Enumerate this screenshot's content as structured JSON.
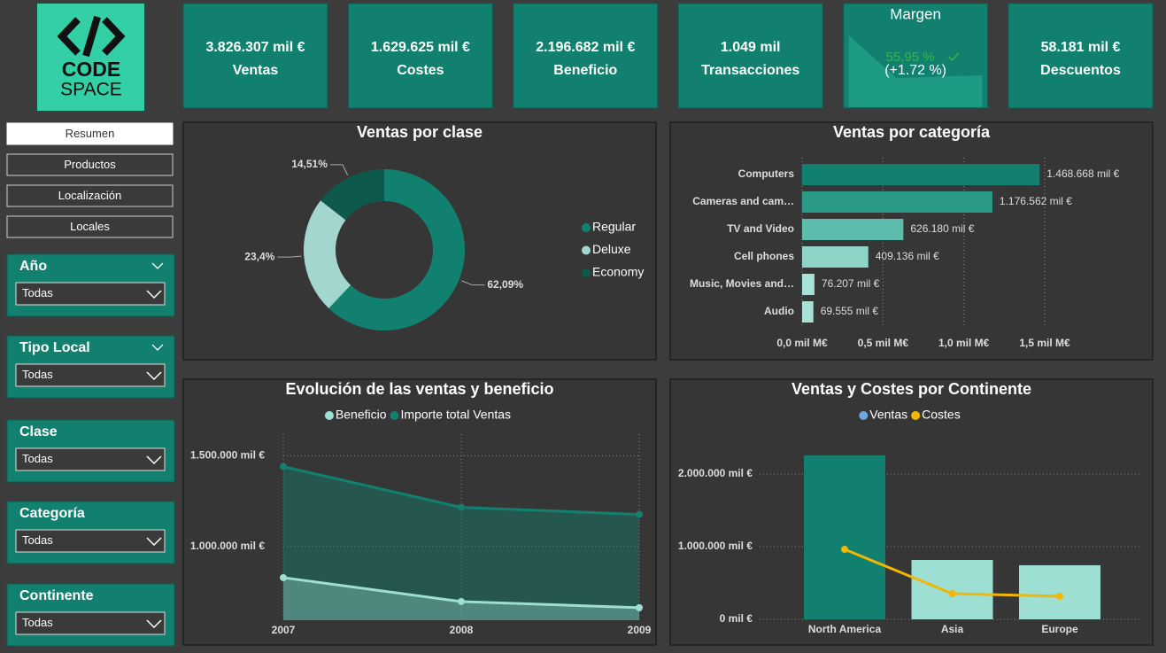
{
  "logo": {
    "line1": "CODE",
    "line2": "SPACE"
  },
  "kpis": [
    {
      "value": "3.826.307 mil €",
      "label": "Ventas"
    },
    {
      "value": "1.629.625 mil €",
      "label": "Costes"
    },
    {
      "value": "2.196.682 mil €",
      "label": "Beneficio"
    },
    {
      "value": "1.049 mil",
      "label": "Transacciones"
    },
    {
      "title": "Margen",
      "value": "55,95 %",
      "change": "(+1.72 %)"
    },
    {
      "value": "58.181 mil €",
      "label": "Descuentos"
    }
  ],
  "nav": [
    "Resumen",
    "Productos",
    "Localización",
    "Locales"
  ],
  "filters": [
    {
      "label": "Año",
      "value": "Todas"
    },
    {
      "label": "Tipo Local",
      "value": "Todas"
    },
    {
      "label": "Clase",
      "value": "Todas"
    },
    {
      "label": "Categoría",
      "value": "Todas"
    },
    {
      "label": "Continente",
      "value": "Todas"
    }
  ],
  "chart_data": [
    {
      "type": "pie",
      "title": "Ventas por clase",
      "categories": [
        "Regular",
        "Deluxe",
        "Economy"
      ],
      "values": [
        62.09,
        23.4,
        14.51
      ],
      "value_labels": [
        "62,09%",
        "23,4%",
        "14,51%"
      ],
      "colors": [
        "#12806f",
        "#a3d6cf",
        "#0d5a4c"
      ],
      "legend": "right"
    },
    {
      "type": "bar",
      "orientation": "horizontal",
      "title": "Ventas por categoría",
      "categories": [
        "Computers",
        "Cameras and cam…",
        "TV and Video",
        "Cell phones",
        "Music, Movies and…",
        "Audio"
      ],
      "values": [
        1.468668,
        1.176562,
        0.62618,
        0.409136,
        0.076207,
        0.069555
      ],
      "value_labels": [
        "1.468.668 mil €",
        "1.176.562 mil €",
        "626.180 mil €",
        "409.136 mil €",
        "76.207 mil €",
        "69.555 mil €"
      ],
      "colors": [
        "#12806f",
        "#2a9a86",
        "#5dbcab",
        "#8ed5c7",
        "#a7e1d7",
        "#a7e1d7"
      ],
      "xlim": [
        0,
        1.5
      ],
      "xticks": [
        {
          "value": 0,
          "label": "0,0 mil M€"
        },
        {
          "value": 0.5,
          "label": "0,5 mil M€"
        },
        {
          "value": 1,
          "label": "1,0 mil M€"
        },
        {
          "value": 1.5,
          "label": "1,5 mil M€"
        }
      ],
      "grid": true
    },
    {
      "type": "area",
      "title": "Evolución de las ventas y beneficio",
      "categories": [
        "2007",
        "2008",
        "2009"
      ],
      "series": [
        {
          "name": "Beneficio",
          "color": "#9ddfd3",
          "values": [
            828000,
            696000,
            662000
          ]
        },
        {
          "name": "Importe total Ventas",
          "color": "#12806f",
          "values": [
            1441000,
            1216000,
            1177000
          ]
        }
      ],
      "ylim": [
        593000,
        1620000
      ],
      "yticks": [
        {
          "value": 1000000,
          "label": "1.000.000 mil €"
        },
        {
          "value": 1500000,
          "label": "1.500.000 mil €"
        }
      ],
      "grid": true,
      "legend": "top"
    },
    {
      "type": "combo",
      "title": "Ventas y Costes por Continente",
      "categories": [
        "North America",
        "Asia",
        "Europe"
      ],
      "series": [
        {
          "name": "Ventas",
          "color": "#6fa8dc",
          "bar_colors": [
            "#12806f",
            "#9ddfd3",
            "#9ddfd3"
          ],
          "values": [
            2256000,
            817000,
            744000
          ]
        },
        {
          "name": "Costes",
          "color": "#f2b705",
          "values": [
            963000,
            354000,
            317000
          ]
        }
      ],
      "ylim": [
        0,
        2500000
      ],
      "yticks": [
        {
          "value": 0,
          "label": "0 mil €"
        },
        {
          "value": 1000000,
          "label": "1.000.000 mil €"
        },
        {
          "value": 2000000,
          "label": "2.000.000 mil €"
        }
      ],
      "grid": true,
      "legend": "top"
    }
  ]
}
